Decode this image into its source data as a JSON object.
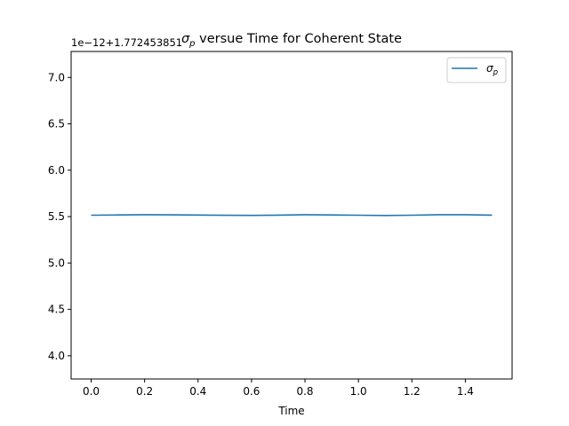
{
  "chart_data": {
    "type": "line",
    "title_symbol": "σ",
    "title_subscript": "p",
    "title_rest": " versue Time for Coherent State",
    "xlabel": "Time",
    "ylabel": "",
    "offset_text": "1e−12+1.772453851",
    "xlim": [
      -0.075,
      1.575
    ],
    "ylim": [
      3.75,
      7.28
    ],
    "xticks": [
      0.0,
      0.2,
      0.4,
      0.6,
      0.8,
      1.0,
      1.2,
      1.4
    ],
    "xtick_labels": [
      "0.0",
      "0.2",
      "0.4",
      "0.6",
      "0.8",
      "1.0",
      "1.2",
      "1.4"
    ],
    "yticks": [
      4.0,
      4.5,
      5.0,
      5.5,
      6.0,
      6.5,
      7.0
    ],
    "ytick_labels": [
      "4.0",
      "4.5",
      "5.0",
      "5.5",
      "6.0",
      "6.5",
      "7.0"
    ],
    "grid": false,
    "legend": {
      "placement": "top-right",
      "symbol": "σ",
      "subscript": "p"
    },
    "series": [
      {
        "name": "σp",
        "color": "#1f77b4",
        "x": [
          0.0,
          0.1,
          0.2,
          0.3,
          0.4,
          0.5,
          0.6,
          0.7,
          0.8,
          0.9,
          1.0,
          1.1,
          1.2,
          1.3,
          1.4,
          1.5
        ],
        "y": [
          5.515,
          5.518,
          5.52,
          5.519,
          5.517,
          5.514,
          5.513,
          5.516,
          5.52,
          5.518,
          5.515,
          5.512,
          5.515,
          5.52,
          5.52,
          5.516
        ]
      }
    ]
  }
}
